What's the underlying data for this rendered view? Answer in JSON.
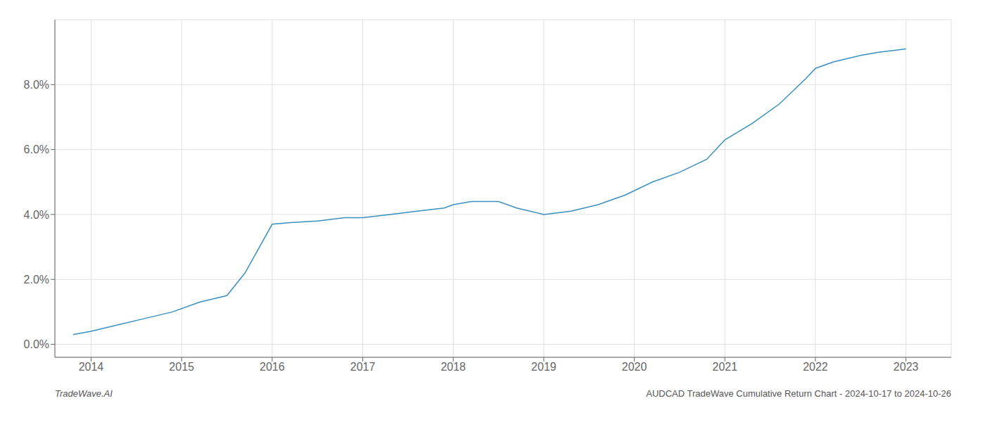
{
  "chart_data": {
    "type": "line",
    "x": [
      2013.8,
      2014.0,
      2014.3,
      2014.6,
      2014.9,
      2015.2,
      2015.5,
      2015.7,
      2016.0,
      2016.2,
      2016.5,
      2016.8,
      2017.0,
      2017.3,
      2017.6,
      2017.9,
      2018.0,
      2018.2,
      2018.5,
      2018.7,
      2019.0,
      2019.3,
      2019.6,
      2019.9,
      2020.2,
      2020.5,
      2020.8,
      2021.0,
      2021.3,
      2021.6,
      2021.9,
      2022.0,
      2022.2,
      2022.5,
      2022.7,
      2023.0
    ],
    "values": [
      0.003,
      0.004,
      0.006,
      0.008,
      0.01,
      0.013,
      0.015,
      0.022,
      0.037,
      0.0375,
      0.038,
      0.039,
      0.039,
      0.04,
      0.041,
      0.042,
      0.043,
      0.044,
      0.044,
      0.042,
      0.04,
      0.041,
      0.043,
      0.046,
      0.05,
      0.053,
      0.057,
      0.063,
      0.068,
      0.074,
      0.082,
      0.085,
      0.087,
      0.089,
      0.09,
      0.091
    ],
    "color": "#3a8fc1",
    "xlim": [
      2013.6,
      2023.5
    ],
    "xticks": [
      2014,
      2015,
      2016,
      2017,
      2018,
      2019,
      2020,
      2021,
      2022,
      2023
    ],
    "ylim": [
      -0.004,
      0.1
    ],
    "yticks": [
      {
        "value": 0.0,
        "label": "0.0%"
      },
      {
        "value": 0.02,
        "label": "2.0%"
      },
      {
        "value": 0.04,
        "label": "4.0%"
      },
      {
        "value": 0.06,
        "label": "6.0%"
      },
      {
        "value": 0.08,
        "label": "8.0%"
      }
    ],
    "grid": true,
    "annotations": [
      "TradeWave.AI",
      "AUDCAD TradeWave Cumulative Return Chart - 2024-10-17 to 2024-10-26"
    ]
  }
}
